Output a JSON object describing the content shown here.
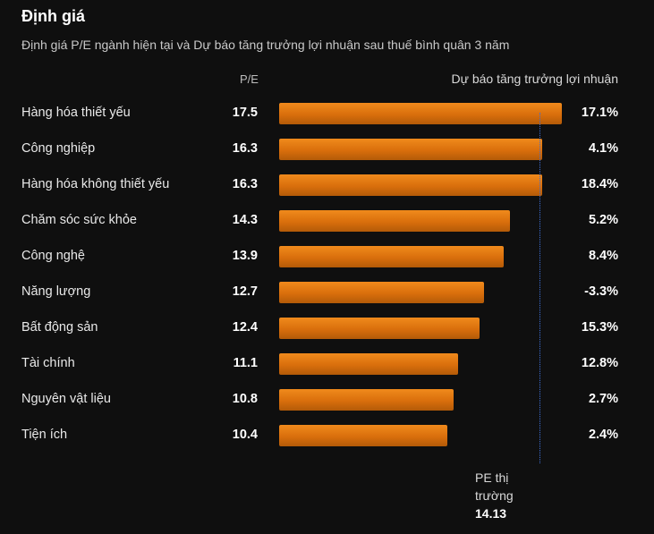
{
  "header": {
    "title": "Định giá",
    "subtitle": "Định giá P/E ngành hiện tại và Dự báo tăng trưởng lợi nhuận sau thuế bình quân 3 năm",
    "pe_column": "P/E",
    "growth_column": "Dự báo tăng trưởng lợi nhuận"
  },
  "reference": {
    "label_line1": "PE thị",
    "label_line2": "trường",
    "value": "14.13"
  },
  "chart_data": {
    "type": "bar",
    "orientation": "horizontal",
    "categories": [
      "Hàng hóa thiết yếu",
      "Công nghiệp",
      "Hàng hóa không thiết yếu",
      "Chăm sóc sức khỏe",
      "Công nghệ",
      "Năng lượng",
      "Bất động sản",
      "Tài chính",
      "Nguyên vật liệu",
      "Tiện ích"
    ],
    "pe_values": [
      17.5,
      16.3,
      16.3,
      14.3,
      13.9,
      12.7,
      12.4,
      11.1,
      10.8,
      10.4
    ],
    "pe_labels": [
      "17.5",
      "16.3",
      "16.3",
      "14.3",
      "13.9",
      "12.7",
      "12.4",
      "11.1",
      "10.8",
      "10.4"
    ],
    "growth_labels": [
      "17.1%",
      "4.1%",
      "18.4%",
      "5.2%",
      "8.4%",
      "-3.3%",
      "15.3%",
      "12.8%",
      "2.7%",
      "2.4%"
    ],
    "growth_values": [
      17.1,
      4.1,
      18.4,
      5.2,
      8.4,
      -3.3,
      15.3,
      12.8,
      2.7,
      2.4
    ],
    "market_pe": 14.13,
    "xlim": [
      0,
      17.5
    ],
    "bar_color": "#e07a12"
  }
}
